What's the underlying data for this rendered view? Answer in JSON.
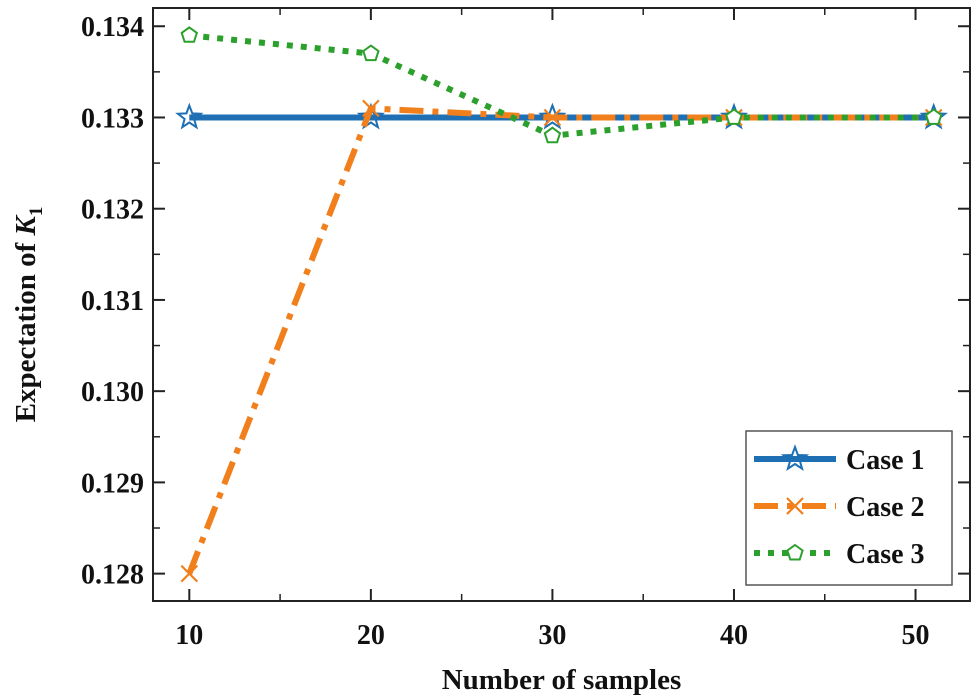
{
  "chart_data": {
    "type": "line",
    "title": "",
    "xlabel": "Number of samples",
    "ylabel_prefix": "Expectation of ",
    "ylabel_var": "K",
    "ylabel_sub": "1",
    "x": [
      10,
      20,
      30,
      40,
      51
    ],
    "xlim": [
      8,
      53
    ],
    "ylim": [
      127.7,
      134.2
    ],
    "y_scale_divisor": 1000,
    "x_ticks": [
      10,
      20,
      30,
      40,
      50
    ],
    "x_tick_labels": [
      "10",
      "20",
      "30",
      "40",
      "50"
    ],
    "x_minor_ticks": [
      15,
      25,
      35,
      45
    ],
    "y_ticks": [
      128,
      129,
      130,
      131,
      132,
      133,
      134
    ],
    "y_tick_labels": [
      "0.128",
      "0.129",
      "0.130",
      "0.131",
      "0.132",
      "0.133",
      "0.134"
    ],
    "y_minor_ticks": [
      128.5,
      129.5,
      130.5,
      131.5,
      132.5,
      133.5
    ],
    "grid": false,
    "legend_position": "bottom-right",
    "series": [
      {
        "name": "Case 1",
        "color": "#1f6fb4",
        "dash": "solid",
        "marker": "star",
        "values": [
          133.0,
          133.0,
          133.0,
          133.0,
          133.0
        ]
      },
      {
        "name": "Case 2",
        "color": "#f07f1c",
        "dash": "dashdot",
        "marker": "x",
        "values": [
          128.0,
          133.1,
          133.0,
          133.0,
          133.0
        ]
      },
      {
        "name": "Case 3",
        "color": "#2ca02c",
        "dash": "dotted",
        "marker": "pentagon",
        "values": [
          133.9,
          133.7,
          132.8,
          133.0,
          133.0
        ]
      }
    ]
  }
}
